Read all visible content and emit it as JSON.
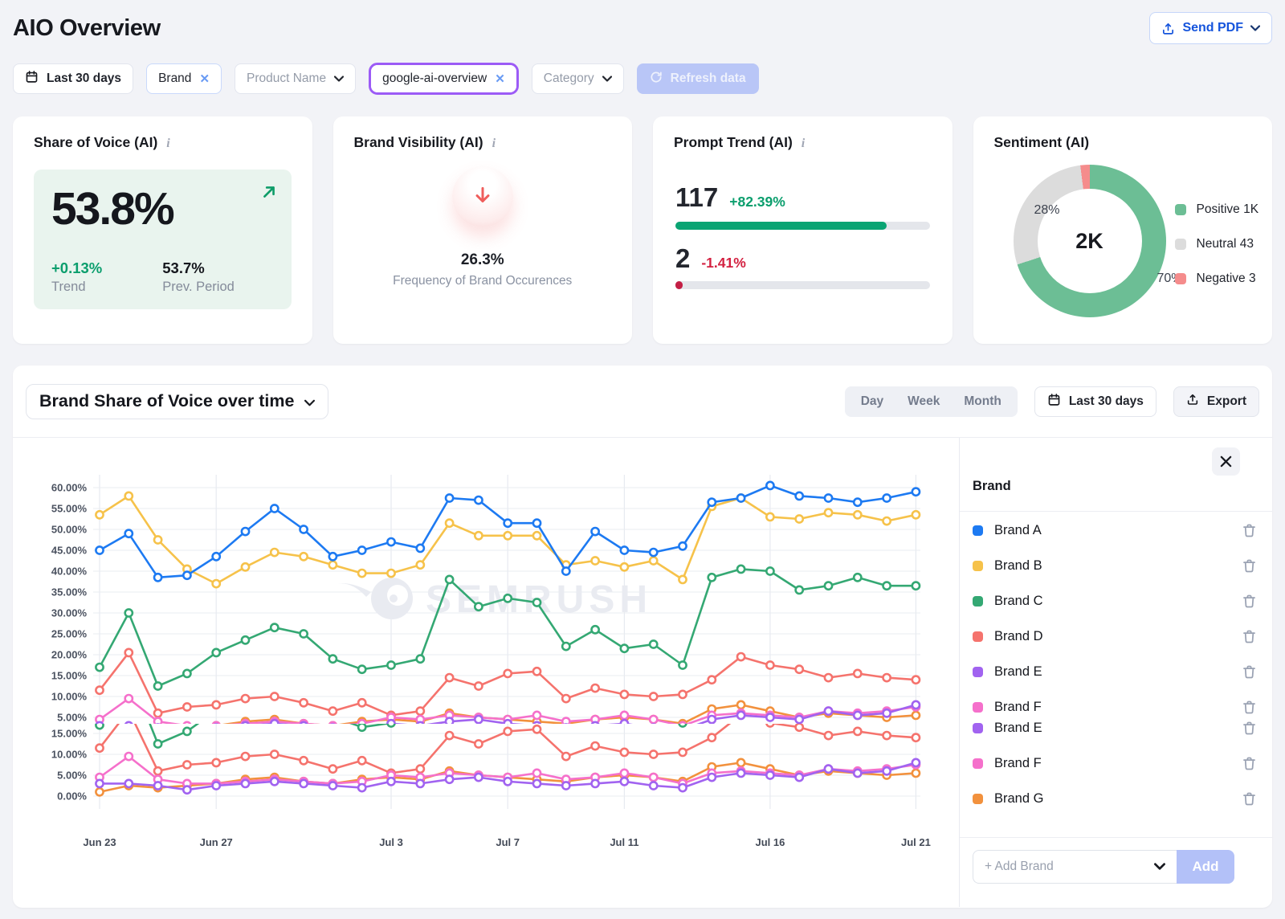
{
  "header": {
    "title": "AIO Overview",
    "send_pdf_label": "Send PDF"
  },
  "filters": {
    "date_range": "Last 30 days",
    "brand_chip": "Brand",
    "product_name": "Product Name",
    "highlighted_chip": "google-ai-overview",
    "category": "Category",
    "refresh_label": "Refresh data"
  },
  "kpis": {
    "share_of_voice": {
      "title": "Share of Voice (AI)",
      "value": "53.8%",
      "trend_value": "+0.13%",
      "trend_label": "Trend",
      "prev_value": "53.7%",
      "prev_label": "Prev. Period",
      "accent_color": "#0b9e6d",
      "panel_color": "#e9f4ee"
    },
    "brand_visibility": {
      "title": "Brand Visibility (AI)",
      "value": "26.3%",
      "caption": "Frequency of Brand Occurences",
      "arrow_color": "#ef5e5c"
    },
    "prompt_trend": {
      "title": "Prompt Trend (AI)",
      "value1": "117",
      "delta1": "+82.39%",
      "bar1_pct": 83,
      "bar1_color": "#0aa473",
      "value2": "2",
      "delta2": "-1.41%",
      "bar2_pct": 2,
      "bar2_color": "#c31f45"
    },
    "sentiment": {
      "title": "Sentiment (AI)",
      "center": "2K",
      "label_gray": "28%",
      "label_green": "70%",
      "slices": [
        {
          "label": "Positive",
          "value": "1K",
          "pct": 70,
          "color": "#6cbe95"
        },
        {
          "label": "Neutral",
          "value": "43",
          "pct": 28,
          "color": "#dcdcdc"
        },
        {
          "label": "Negative",
          "value": "3",
          "pct": 2,
          "color": "#f58c8c"
        }
      ]
    }
  },
  "chart_card": {
    "title": "Brand Share of Voice over time",
    "granularity": [
      "Day",
      "Week",
      "Month"
    ],
    "date_range": "Last 30 days",
    "export_label": "Export",
    "watermark": "SEMRUSH"
  },
  "chart_data": {
    "type": "line",
    "title": "Brand Share of Voice over time",
    "ylim": [
      0,
      60
    ],
    "grid": true,
    "y_ticks_main": [
      "60.00%",
      "55.00%",
      "50.00%",
      "45.00%",
      "40.00%",
      "35.00%",
      "30.00%",
      "25.00%",
      "20.00%",
      "15.00%",
      "10.00%",
      "5.00%"
    ],
    "y_ticks_duplicate_band": [
      "15.00%",
      "10.00%",
      "5.00%",
      "0.00%"
    ],
    "x_tick_labels": [
      "Jun 23",
      "Jun 27",
      "Jul 3",
      "Jul 7",
      "Jul 11",
      "Jul 16",
      "Jul 21"
    ],
    "x_tick_day_index": [
      0,
      4,
      10,
      14,
      18,
      23,
      28
    ],
    "n_points": 29,
    "legend_position": "right-panel",
    "glitch_note": "lower strip of the plot is re-rendered: series C-G repeat over a second y-axis of 15/10/5/0",
    "duplicate_band_series": [
      "Brand C",
      "Brand D",
      "Brand E",
      "Brand F",
      "Brand G"
    ],
    "series": [
      {
        "name": "Brand A",
        "color": "#1d7af2",
        "values": [
          45,
          49,
          38.5,
          39,
          43.5,
          49.5,
          55,
          50,
          43.5,
          45,
          47,
          45.5,
          57.5,
          57,
          51.5,
          51.5,
          40,
          49.5,
          45,
          44.5,
          46,
          56.5,
          57.5,
          60.5,
          58,
          57.5,
          56.5,
          57.5,
          59
        ]
      },
      {
        "name": "Brand B",
        "color": "#f6c24a",
        "values": [
          53.5,
          58,
          47.5,
          40.5,
          37,
          41,
          44.5,
          43.5,
          41.5,
          39.5,
          39.5,
          41.5,
          51.5,
          48.5,
          48.5,
          48.5,
          41.5,
          42.5,
          41,
          42.5,
          38,
          55.5,
          57.5,
          53,
          52.5,
          54,
          53.5,
          52,
          53.5
        ]
      },
      {
        "name": "Brand C",
        "color": "#34a873",
        "values": [
          17,
          30,
          12.5,
          15.5,
          20.5,
          23.5,
          26.5,
          25,
          19,
          16.5,
          17.5,
          19,
          38,
          31.5,
          33.5,
          32.5,
          22,
          26,
          21.5,
          22.5,
          17.5,
          38.5,
          40.5,
          40,
          35.5,
          36.5,
          38.5,
          36.5,
          36.5
        ]
      },
      {
        "name": "Brand D",
        "color": "#f5736d",
        "values": [
          11.5,
          20.5,
          6,
          7.5,
          8,
          9.5,
          10,
          8.5,
          6.5,
          8.5,
          5.5,
          6.5,
          14.5,
          12.5,
          15.5,
          16,
          9.5,
          12,
          10.5,
          10,
          10.5,
          14,
          19.5,
          17.5,
          16.5,
          14.5,
          15.5,
          14.5,
          14
        ]
      },
      {
        "name": "Brand E",
        "color": "#a163f0",
        "values": [
          3,
          3,
          2.5,
          1.5,
          2.5,
          3,
          3.5,
          3,
          2.5,
          2,
          3.5,
          3,
          4,
          4.5,
          3.5,
          3,
          2.5,
          3,
          3.5,
          2.5,
          2,
          4.5,
          5.5,
          5,
          4.5,
          6.5,
          5.5,
          6,
          8
        ]
      },
      {
        "name": "Brand F",
        "color": "#f570cb",
        "values": [
          4.5,
          9.5,
          4,
          3,
          3,
          3.5,
          4,
          3.5,
          3,
          3.5,
          5,
          4.5,
          5.5,
          5,
          4.5,
          5.5,
          4,
          4.5,
          5.5,
          4.5,
          3,
          5.5,
          6,
          5.5,
          5,
          6.5,
          6,
          6.5,
          7.5
        ]
      },
      {
        "name": "Brand G",
        "color": "#f2913d",
        "values": [
          1,
          2.5,
          2,
          2.5,
          3,
          4,
          4.5,
          3.5,
          3,
          4,
          4.5,
          4,
          6,
          5,
          4.5,
          4,
          3.5,
          4.5,
          5,
          4.5,
          3.5,
          7,
          8,
          6.5,
          5,
          6,
          5.5,
          5,
          5.5
        ]
      }
    ]
  },
  "sidebar": {
    "header": "Brand",
    "items": [
      {
        "label": "Brand A",
        "color": "#1d7af2"
      },
      {
        "label": "Brand B",
        "color": "#f6c24a"
      },
      {
        "label": "Brand C",
        "color": "#34a873"
      },
      {
        "label": "Brand D",
        "color": "#f5736d"
      },
      {
        "label": "Brand E",
        "color": "#a163f0"
      },
      {
        "label": "Brand F",
        "color": "#f570cb"
      },
      {
        "label": "Brand E",
        "color": "#a163f0"
      },
      {
        "label": "Brand F",
        "color": "#f570cb"
      },
      {
        "label": "Brand G",
        "color": "#f2913d"
      }
    ],
    "add_placeholder": "+ Add Brand",
    "add_button": "Add"
  }
}
